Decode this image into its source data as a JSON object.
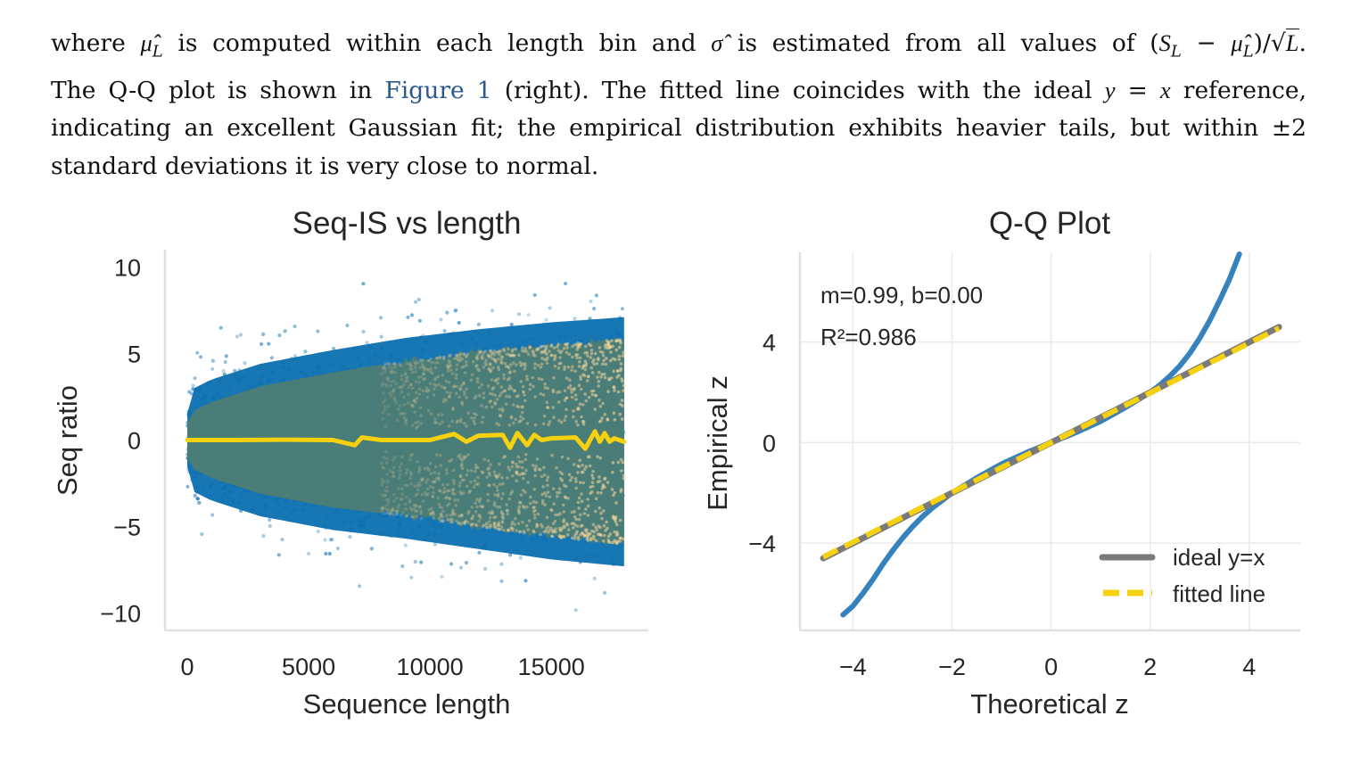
{
  "paragraph": {
    "lines": [
      {
        "parts": [
          {
            "t": "where ",
            "k": "text"
          },
          {
            "t": "μ̂",
            "k": "math"
          },
          {
            "t": "L",
            "k": "sub"
          },
          {
            "t": " is computed within each length bin and ",
            "k": "text"
          },
          {
            "t": "σ̂",
            "k": "math"
          },
          {
            "t": " is estimated from all values of (",
            "k": "text"
          },
          {
            "t": "S",
            "k": "math"
          },
          {
            "t": "L",
            "k": "sub"
          },
          {
            "t": " − ",
            "k": "text"
          },
          {
            "t": "μ̂",
            "k": "math"
          },
          {
            "t": "L",
            "k": "sub"
          },
          {
            "t": ")/√",
            "k": "text"
          },
          {
            "t": "L",
            "k": "mathover"
          },
          {
            "t": ".",
            "k": "text"
          }
        ]
      },
      {
        "parts": [
          {
            "t": "The Q-Q plot is shown in ",
            "k": "text"
          },
          {
            "t": "Figure 1",
            "k": "link"
          },
          {
            "t": " (right). The fitted line coincides with the ideal ",
            "k": "text"
          },
          {
            "t": "y",
            "k": "math"
          },
          {
            "t": " = ",
            "k": "text"
          },
          {
            "t": "x",
            "k": "math"
          },
          {
            "t": " reference,",
            "k": "text"
          }
        ]
      },
      {
        "parts": [
          {
            "t": "indicating an excellent Gaussian fit; the empirical distribution exhibits heavier tails, but within ±2",
            "k": "text"
          }
        ]
      },
      {
        "parts": [
          {
            "t": "standard deviations it is very close to normal.",
            "k": "text"
          }
        ]
      }
    ]
  },
  "chart_data": [
    {
      "type": "scatter",
      "title": "Seq-IS vs length",
      "xlabel": "Sequence length",
      "ylabel": "Seq ratio",
      "xlim": [
        -920,
        19000
      ],
      "ylim": [
        -11,
        11
      ],
      "xticks": [
        0,
        5000,
        10000,
        15000
      ],
      "xtick_labels": [
        "0",
        "5000",
        "10000",
        "15000"
      ],
      "yticks": [
        10,
        5,
        0,
        -5,
        -10
      ],
      "ytick_labels": [
        "10",
        "5",
        "0",
        "−5",
        "−10"
      ],
      "grid": false,
      "x_range_of_points": [
        0,
        18000
      ],
      "series": [
        {
          "name": "points",
          "color": "#0b6fb0",
          "description": "dense blue scatter; spread grows with sequence length",
          "spread_envelope": {
            "length": [
              0,
              1000,
              3000,
              6000,
              9000,
              12000,
              15000,
              18000
            ],
            "outer_upper": [
              4.5,
              6.0,
              7.5,
              8.5,
              9.5,
              10.0,
              10.5,
              10.5
            ],
            "outer_lower": [
              -4.5,
              -6.0,
              -8.0,
              -9.0,
              -10.0,
              -10.5,
              -10.5,
              -10.5
            ]
          }
        },
        {
          "name": "density band",
          "color": "#4a7c78",
          "highlight_color": "#f1d49a",
          "band_upper": [
            1.5,
            2.2,
            3.1,
            3.9,
            4.6,
            5.1,
            5.5,
            5.8
          ],
          "band_lower": [
            -1.5,
            -2.2,
            -3.1,
            -3.9,
            -4.4,
            -5.0,
            -5.6,
            -6.0
          ],
          "band_length": [
            0,
            1000,
            3000,
            6000,
            9000,
            12000,
            15000,
            18000
          ]
        },
        {
          "name": "binned mean",
          "type": "line",
          "color": "#f5d10f",
          "x": [
            0,
            2000,
            4000,
            6000,
            6900,
            7200,
            8000,
            10000,
            11000,
            11500,
            12000,
            13000,
            13300,
            13600,
            14000,
            14300,
            14600,
            15000,
            16000,
            16400,
            16800,
            17000,
            17200,
            17400,
            17600,
            18000
          ],
          "y": [
            0.0,
            0.0,
            0.02,
            0.0,
            -0.3,
            0.15,
            0.0,
            0.0,
            0.35,
            -0.1,
            0.25,
            0.3,
            -0.45,
            0.4,
            -0.3,
            0.3,
            0.0,
            0.1,
            0.15,
            -0.5,
            0.5,
            -0.1,
            0.4,
            -0.1,
            0.1,
            -0.1
          ]
        }
      ]
    },
    {
      "type": "line",
      "title": "Q-Q Plot",
      "xlabel": "Theoretical z",
      "ylabel": "Empirical z",
      "xlim": [
        -5.07,
        5.03
      ],
      "ylim": [
        -7.47,
        7.5
      ],
      "xticks": [
        -4,
        -2,
        0,
        2,
        4
      ],
      "xtick_labels": [
        "−4",
        "−2",
        "0",
        "2",
        "4"
      ],
      "yticks": [
        4,
        0,
        -4
      ],
      "ytick_labels": [
        "4",
        "0",
        "−4"
      ],
      "grid": true,
      "annotations": [
        "m=0.99, b=0.00",
        "R²=0.986"
      ],
      "legend": {
        "placement": "lower-right",
        "entries": [
          {
            "label": "ideal y=x",
            "color": "#7a7a7a",
            "style": "solid"
          },
          {
            "label": "fitted line",
            "color": "#f5d10f",
            "style": "dashed"
          }
        ]
      },
      "series": [
        {
          "name": "empirical quantiles",
          "color": "#2b7bb9",
          "x": [
            -4.2,
            -4.0,
            -3.8,
            -3.6,
            -3.4,
            -3.2,
            -3.0,
            -2.8,
            -2.6,
            -2.4,
            -2.2,
            -2.0,
            -1.5,
            -1.0,
            -0.5,
            0.0,
            0.5,
            1.0,
            1.5,
            2.0,
            2.2,
            2.4,
            2.6,
            2.8,
            3.0,
            3.2,
            3.4,
            3.6,
            3.8
          ],
          "y": [
            -6.85,
            -6.5,
            -6.0,
            -5.45,
            -4.85,
            -4.3,
            -3.8,
            -3.35,
            -2.95,
            -2.6,
            -2.3,
            -2.0,
            -1.4,
            -0.85,
            -0.4,
            0.0,
            0.4,
            0.85,
            1.4,
            2.0,
            2.3,
            2.65,
            3.05,
            3.55,
            4.15,
            4.85,
            5.65,
            6.5,
            7.5
          ]
        },
        {
          "name": "ideal y=x",
          "color": "#7a7a7a",
          "x": [
            -4.6,
            4.6
          ],
          "y": [
            -4.6,
            4.6
          ]
        },
        {
          "name": "fitted line",
          "color": "#f5d10f",
          "slope": 0.99,
          "intercept": 0.0,
          "x": [
            -4.6,
            4.6
          ],
          "y": [
            -4.554,
            4.554
          ]
        }
      ]
    }
  ]
}
